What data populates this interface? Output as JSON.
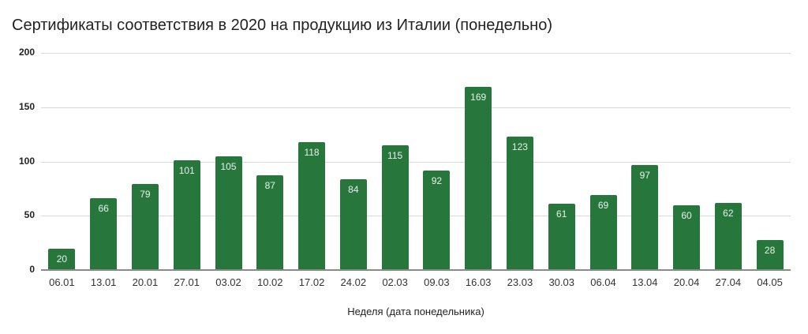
{
  "chart_data": {
    "type": "bar",
    "title": "Сертификаты соответствия в 2020 на продукцию из Италии (понедельно)",
    "xlabel": "Неделя (дата понедельника)",
    "ylabel": "",
    "ylim": [
      0,
      200
    ],
    "yticks": [
      0,
      50,
      100,
      150,
      200
    ],
    "grid": true,
    "legend": "none",
    "data_labels": true,
    "color": "#27773c",
    "categories": [
      "06.01",
      "13.01",
      "20.01",
      "27.01",
      "03.02",
      "10.02",
      "17.02",
      "24.02",
      "02.03",
      "09.03",
      "16.03",
      "23.03",
      "30.03",
      "06.04",
      "13.04",
      "20.04",
      "27.04",
      "04.05"
    ],
    "values": [
      20,
      66,
      79,
      101,
      105,
      87,
      118,
      84,
      115,
      92,
      169,
      123,
      61,
      69,
      97,
      60,
      62,
      28
    ]
  }
}
